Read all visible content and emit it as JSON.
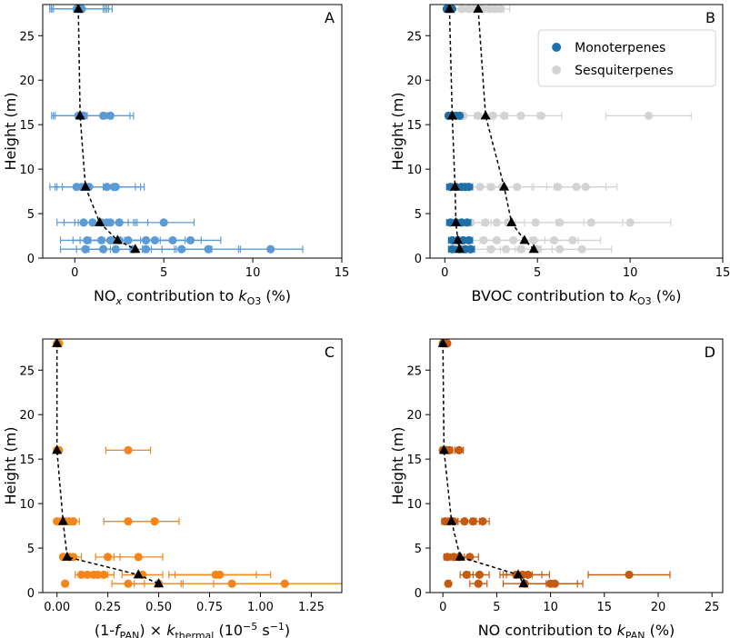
{
  "figure_title": "",
  "chart_data": [
    {
      "id": "A",
      "panel_label": "A",
      "type": "scatter",
      "xlabel_parts": {
        "pre": "NO",
        "sub1": "x",
        "mid": " contribution to ",
        "ital": "k",
        "sub2": "O3",
        "post": " (%)"
      },
      "ylabel": "Height (m)",
      "xlim": [
        -1.8,
        15
      ],
      "ylim": [
        0,
        28.5
      ],
      "xticks": [
        0,
        5,
        10,
        15
      ],
      "yticks": [
        0,
        5,
        10,
        15,
        20,
        25
      ],
      "xtick_labels": [
        "0",
        "5",
        "10",
        "15"
      ],
      "ytick_labels": [
        "0",
        "5",
        "10",
        "15",
        "20",
        "25"
      ],
      "series": [
        {
          "name": "NOx contribution",
          "color": "#5b9bd5",
          "points": [
            {
              "h": 28,
              "x": [
                0.1,
                0.2,
                0.3,
                0.4,
                0.2,
                0.3
              ],
              "err": [
                1.5,
                1.5,
                1.6,
                1.7,
                1.6,
                1.5
              ]
            },
            {
              "h": 16,
              "x": [
                0.2,
                0.3,
                0.5,
                1.6,
                2.0,
                0.4
              ],
              "err": [
                1.5,
                1.5,
                1.6,
                1.5,
                1.3,
                1.6
              ]
            },
            {
              "h": 8,
              "x": [
                0.1,
                0.4,
                0.6,
                0.8,
                1.8,
                2.2,
                2.3
              ],
              "err": [
                1.5,
                1.5,
                1.6,
                1.5,
                1.6,
                1.5,
                1.6
              ]
            },
            {
              "h": 4,
              "x": [
                0.5,
                1.0,
                1.5,
                1.8,
                2.0,
                2.5,
                5.0
              ],
              "err": [
                1.5,
                1.6,
                1.5,
                1.6,
                1.5,
                1.6,
                1.7
              ]
            },
            {
              "h": 2,
              "x": [
                0.7,
                1.5,
                2.0,
                2.5,
                3.0,
                4.0,
                4.5,
                5.5,
                6.5
              ],
              "err": [
                1.5,
                1.6,
                1.7,
                1.6,
                1.5,
                1.6,
                1.7,
                1.6,
                1.7
              ]
            },
            {
              "h": 1,
              "x": [
                0.6,
                1.6,
                2.3,
                3.3,
                4.0,
                6.0,
                7.5,
                11.0
              ],
              "err": [
                1.4,
                1.5,
                1.5,
                1.6,
                1.6,
                1.7,
                1.8,
                1.8
              ]
            }
          ]
        }
      ],
      "mean_line": {
        "heights": [
          28,
          16,
          8,
          4,
          2,
          1
        ],
        "x": [
          0.2,
          0.3,
          0.6,
          1.4,
          2.4,
          3.4
        ]
      }
    },
    {
      "id": "B",
      "panel_label": "B",
      "type": "scatter",
      "xlabel_parts": {
        "pre": "BVOC",
        "sub1": "",
        "mid": " contribution to ",
        "ital": "k",
        "sub2": "O3",
        "post": " (%)"
      },
      "ylabel": "Height (m)",
      "xlim": [
        -0.8,
        15
      ],
      "ylim": [
        0,
        28.5
      ],
      "xticks": [
        0,
        5,
        10,
        15
      ],
      "yticks": [
        0,
        5,
        10,
        15,
        20,
        25
      ],
      "xtick_labels": [
        "0",
        "5",
        "10",
        "15"
      ],
      "ytick_labels": [
        "0",
        "5",
        "10",
        "15",
        "20",
        "25"
      ],
      "legend": {
        "position": "top-right",
        "entries": [
          {
            "label": "Monoterpenes",
            "color": "#1f6fa8"
          },
          {
            "label": "Sesquiterpenes",
            "color": "#d3d3d3"
          }
        ]
      },
      "series": [
        {
          "name": "Sesquiterpenes",
          "color": "#d3d3d3",
          "points": [
            {
              "h": 28,
              "x": [
                0.9,
                1.3,
                1.6,
                2.0,
                2.4,
                2.7,
                3.0
              ],
              "err": [
                0.5,
                0.5,
                0.5,
                0.5,
                0.5,
                0.5,
                0.5
              ]
            },
            {
              "h": 16,
              "x": [
                1.0,
                1.8,
                2.6,
                3.2,
                4.1,
                5.2,
                11.0
              ],
              "err": [
                0.6,
                0.7,
                0.8,
                0.8,
                0.9,
                1.1,
                2.3
              ]
            },
            {
              "h": 8,
              "x": [
                1.2,
                1.9,
                2.5,
                3.1,
                3.9,
                6.1,
                7.1,
                7.6
              ],
              "err": [
                0.6,
                0.7,
                0.7,
                0.8,
                0.9,
                1.4,
                1.6,
                1.7
              ]
            },
            {
              "h": 4,
              "x": [
                1.4,
                2.2,
                2.8,
                3.4,
                4.9,
                6.2,
                7.9,
                10.0
              ],
              "err": [
                0.6,
                0.7,
                0.8,
                0.9,
                1.1,
                1.3,
                1.7,
                2.2
              ]
            },
            {
              "h": 2,
              "x": [
                2.1,
                2.8,
                3.7,
                4.8,
                5.9,
                6.9
              ],
              "err": [
                0.8,
                0.9,
                1.0,
                1.1,
                1.3,
                1.5
              ]
            },
            {
              "h": 1,
              "x": [
                2.5,
                3.3,
                4.1,
                5.0,
                6.2,
                7.4
              ],
              "err": [
                0.9,
                1.0,
                1.1,
                1.2,
                1.3,
                1.6
              ]
            }
          ]
        },
        {
          "name": "Monoterpenes",
          "color": "#1f6fa8",
          "points": [
            {
              "h": 28,
              "x": [
                0.1,
                0.2,
                0.3,
                0.4
              ],
              "err": [
                0.1,
                0.1,
                0.1,
                0.1
              ]
            },
            {
              "h": 16,
              "x": [
                0.2,
                0.4,
                0.6,
                0.8
              ],
              "err": [
                0.1,
                0.1,
                0.1,
                0.1
              ]
            },
            {
              "h": 8,
              "x": [
                0.3,
                0.6,
                0.9,
                1.1,
                1.3
              ],
              "err": [
                0.2,
                0.2,
                0.2,
                0.2,
                0.2
              ]
            },
            {
              "h": 4,
              "x": [
                0.3,
                0.6,
                0.9,
                1.2
              ],
              "err": [
                0.2,
                0.2,
                0.2,
                0.2
              ]
            },
            {
              "h": 2,
              "x": [
                0.4,
                0.7,
                1.0,
                1.3
              ],
              "err": [
                0.2,
                0.2,
                0.2,
                0.2
              ]
            },
            {
              "h": 1,
              "x": [
                0.4,
                0.8,
                1.1,
                1.4
              ],
              "err": [
                0.2,
                0.2,
                0.2,
                0.2
              ]
            }
          ]
        }
      ],
      "mean_line": {
        "heights": [
          28,
          16,
          8,
          4,
          2,
          1
        ],
        "x": [
          1.8,
          2.2,
          3.2,
          3.6,
          4.3,
          4.8
        ]
      },
      "mono_mean_line": {
        "heights": [
          28,
          16,
          8,
          4,
          2,
          1
        ],
        "x": [
          0.25,
          0.4,
          0.55,
          0.6,
          0.7,
          0.8
        ]
      }
    },
    {
      "id": "C",
      "panel_label": "C",
      "type": "scatter",
      "xlabel_parts": {
        "pre": "(1-",
        "ital1": "f",
        "sub1": "PAN",
        "mid": ") × ",
        "ital": "k",
        "sub2": "thermal",
        "post": " (10",
        "sup": "−5",
        "post2": " s",
        "sup2": "−1",
        "post3": ")"
      },
      "ylabel": "Height (m)",
      "xlim": [
        -0.07,
        1.4
      ],
      "ylim": [
        0,
        28.5
      ],
      "xticks": [
        0,
        0.25,
        0.5,
        0.75,
        1.0,
        1.25
      ],
      "yticks": [
        0,
        5,
        10,
        15,
        20,
        25
      ],
      "xtick_labels": [
        "0.00",
        "0.25",
        "0.50",
        "0.75",
        "1.00",
        "1.25"
      ],
      "ytick_labels": [
        "0",
        "5",
        "10",
        "15",
        "20",
        "25"
      ],
      "series": [
        {
          "name": "Thermal",
          "color": "#f58518",
          "points": [
            {
              "h": 28,
              "x": [
                0.0,
                0.01
              ],
              "err": [
                0,
                0
              ]
            },
            {
              "h": 16,
              "x": [
                0.0,
                0.01,
                0.35
              ],
              "err": [
                0,
                0,
                0.11
              ]
            },
            {
              "h": 8,
              "x": [
                0.0,
                0.02,
                0.04,
                0.06,
                0.08,
                0.35,
                0.48
              ],
              "err": [
                0,
                0,
                0.02,
                0.03,
                0.03,
                0.12,
                0.12
              ]
            },
            {
              "h": 4,
              "x": [
                0.03,
                0.06,
                0.08,
                0.25,
                0.4
              ],
              "err": [
                0.01,
                0.03,
                0.04,
                0.06,
                0.12
              ]
            },
            {
              "h": 2,
              "x": [
                0.12,
                0.15,
                0.18,
                0.2,
                0.23,
                0.42,
                0.78,
                0.8
              ],
              "err": [
                0.03,
                0.04,
                0.04,
                0.05,
                0.05,
                0.1,
                0.2,
                0.25
              ]
            },
            {
              "h": 1,
              "x": [
                0.04,
                0.35,
                0.5,
                0.86,
                1.12
              ],
              "err": [
                0.01,
                0.08,
                0.12,
                0.25,
                0.35
              ]
            }
          ]
        }
      ],
      "mean_line": {
        "heights": [
          28,
          16,
          8,
          4,
          2,
          1
        ],
        "x": [
          0.0,
          0.0,
          0.03,
          0.05,
          0.4,
          0.5
        ]
      }
    },
    {
      "id": "D",
      "panel_label": "D",
      "type": "scatter",
      "xlabel_parts": {
        "pre": "NO",
        "sub1": "",
        "mid": " contribution to ",
        "ital": "k",
        "sub2": "PAN",
        "post": " (%)"
      },
      "ylabel": "Height (m)",
      "xlim": [
        -1.2,
        26
      ],
      "ylim": [
        0,
        28.5
      ],
      "xticks": [
        0,
        5,
        10,
        15,
        20,
        25
      ],
      "yticks": [
        0,
        5,
        10,
        15,
        20,
        25
      ],
      "xtick_labels": [
        "0",
        "5",
        "10",
        "15",
        "20",
        "25"
      ],
      "ytick_labels": [
        "0",
        "5",
        "10",
        "15",
        "20",
        "25"
      ],
      "series": [
        {
          "name": "NO contribution",
          "color": "#c55a11",
          "points": [
            {
              "h": 28,
              "x": [
                0.0,
                0.2,
                0.4
              ],
              "err": [
                0.1,
                0.1,
                0.1
              ]
            },
            {
              "h": 16,
              "x": [
                0.0,
                0.3,
                0.6,
                1.5
              ],
              "err": [
                0.2,
                0.2,
                0.3,
                0.4
              ]
            },
            {
              "h": 8,
              "x": [
                0.2,
                0.6,
                1.0,
                2.0,
                2.8,
                3.7
              ],
              "err": [
                0.3,
                0.3,
                0.4,
                0.6,
                0.6,
                0.6
              ]
            },
            {
              "h": 4,
              "x": [
                0.4,
                1.0,
                1.5,
                2.5
              ],
              "err": [
                0.3,
                0.4,
                0.5,
                0.8
              ]
            },
            {
              "h": 2,
              "x": [
                2.2,
                3.4,
                6.8,
                7.4,
                7.9,
                17.3
              ],
              "err": [
                0.6,
                0.9,
                1.5,
                1.8,
                2.0,
                3.8
              ]
            },
            {
              "h": 1,
              "x": [
                0.5,
                3.3,
                7.6,
                10.0,
                10.4
              ],
              "err": [
                0.2,
                0.8,
                2.0,
                2.5,
                2.6
              ]
            }
          ]
        }
      ],
      "mean_line": {
        "heights": [
          28,
          16,
          8,
          4,
          2,
          1
        ],
        "x": [
          0.0,
          0.1,
          0.8,
          1.6,
          7.0,
          7.5
        ]
      }
    }
  ]
}
